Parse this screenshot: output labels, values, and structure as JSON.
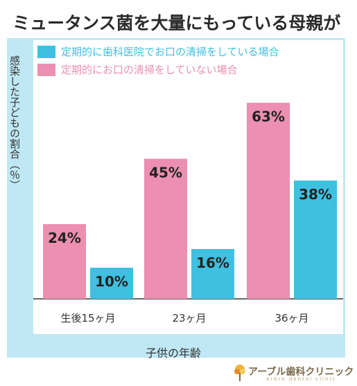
{
  "title": "ミュータンス菌を大量にもっている母親が",
  "chart_data": {
    "type": "bar",
    "categories": [
      "生後15ヶ月",
      "23ヶ月",
      "36ヶ月"
    ],
    "series": [
      {
        "name": "定期的にお口の清掃をしていない場合",
        "values": [
          24,
          45,
          63
        ],
        "labels": [
          "24%",
          "45%",
          "63%"
        ],
        "color": "#ec8fb0"
      },
      {
        "name": "定期的に歯科医院でお口の清掃をしている場合",
        "values": [
          10,
          16,
          38
        ],
        "labels": [
          "10%",
          "16%",
          "38%"
        ],
        "color": "#3fc0e0"
      }
    ],
    "ylabel": "感染した子どもの割合（％）",
    "xlabel": "子供の年齢",
    "ylim": [
      0,
      70
    ],
    "legend_position": "top-left",
    "grid": false
  },
  "legend": [
    {
      "label": "定期的に歯科医院でお口の清掃をしている場合",
      "color": "#3fc0e0"
    },
    {
      "label": "定期的にお口の清掃をしていない場合",
      "color": "#ec8fb0"
    }
  ],
  "logo": {
    "name": "アーブル歯科クリニック",
    "subtitle": "arbre dental clinic"
  },
  "colors": {
    "frame": "#bfe8f4",
    "pink": "#ec8fb0",
    "blue": "#3fc0e0",
    "text": "#222222"
  }
}
